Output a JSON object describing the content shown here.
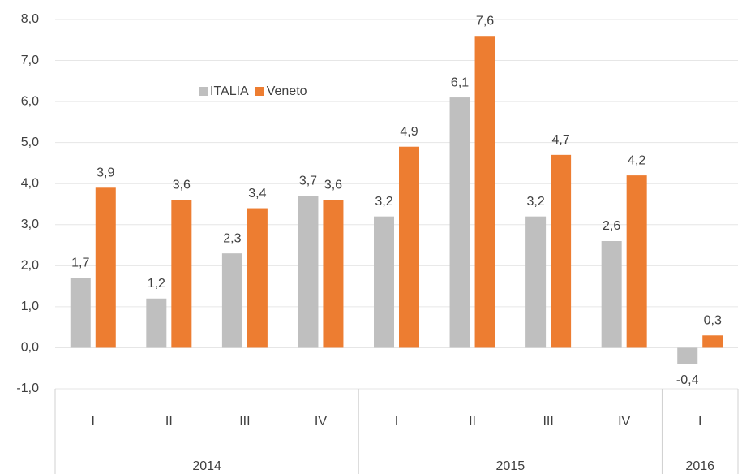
{
  "chart_data": {
    "type": "bar",
    "categories": [
      "I",
      "II",
      "III",
      "IV",
      "I",
      "II",
      "III",
      "IV",
      "I"
    ],
    "groups": [
      {
        "name": "2014",
        "count": 4
      },
      {
        "name": "2015",
        "count": 4
      },
      {
        "name": "2016",
        "count": 1
      }
    ],
    "series": [
      {
        "name": "ITALIA",
        "color": "#bfbfbf",
        "values": [
          1.7,
          1.2,
          2.3,
          3.7,
          3.2,
          6.1,
          3.2,
          2.6,
          -0.4
        ],
        "value_labels": [
          "1,7",
          "1,2",
          "2,3",
          "3,7",
          "3,2",
          "6,1",
          "3,2",
          "2,6",
          "-0,4"
        ]
      },
      {
        "name": "Veneto",
        "color": "#ed7d31",
        "values": [
          3.9,
          3.6,
          3.4,
          3.6,
          4.9,
          7.6,
          4.7,
          4.2,
          0.3
        ],
        "value_labels": [
          "3,9",
          "3,6",
          "3,4",
          "3,6",
          "4,9",
          "7,6",
          "4,7",
          "4,2",
          "0,3"
        ]
      }
    ],
    "ylim": [
      -1,
      8
    ],
    "yticks": [
      {
        "value": -1,
        "label": "-1,0"
      },
      {
        "value": 0,
        "label": "0,0"
      },
      {
        "value": 1,
        "label": "1,0"
      },
      {
        "value": 2,
        "label": "2,0"
      },
      {
        "value": 3,
        "label": "3,0"
      },
      {
        "value": 4,
        "label": "4,0"
      },
      {
        "value": 5,
        "label": "5,0"
      },
      {
        "value": 6,
        "label": "6,0"
      },
      {
        "value": 7,
        "label": "7,0"
      },
      {
        "value": 8,
        "label": "8,0"
      }
    ],
    "grid": true
  }
}
